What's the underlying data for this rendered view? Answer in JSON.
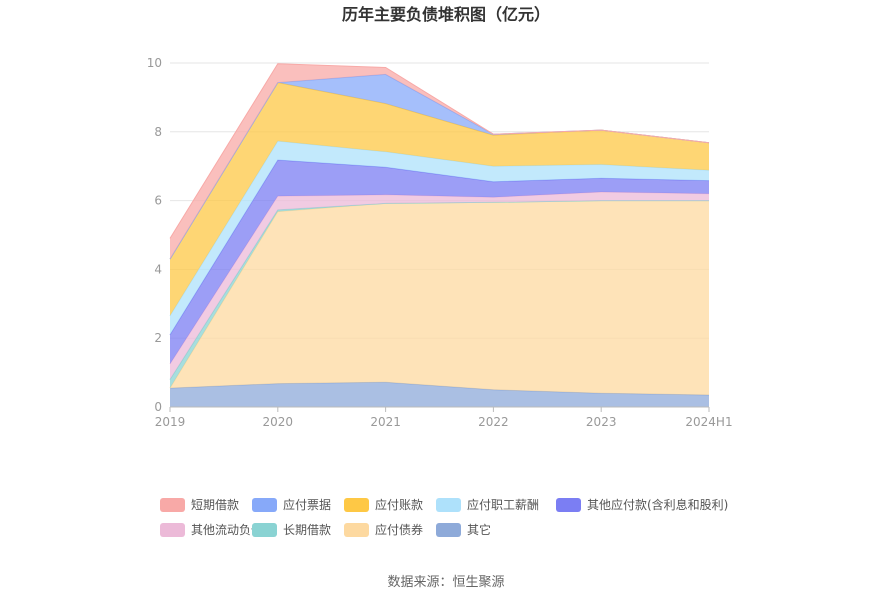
{
  "chart_data": {
    "type": "area",
    "stacked": true,
    "title": "历年主要负债堆积图（亿元）",
    "categories": [
      "2019",
      "2020",
      "2021",
      "2022",
      "2023",
      "2024H1"
    ],
    "ylim": [
      0,
      10
    ],
    "yticks": [
      "0",
      "2",
      "4",
      "6",
      "8",
      "10"
    ],
    "grid": true,
    "legend_position": "bottom",
    "series": [
      {
        "name": "其它",
        "color": "#8eaad9",
        "values": [
          0.55,
          0.68,
          0.72,
          0.5,
          0.4,
          0.35
        ]
      },
      {
        "name": "应付债券",
        "color": "#fdd9a0",
        "values": [
          0.0,
          5.0,
          5.2,
          5.45,
          5.6,
          5.65
        ]
      },
      {
        "name": "长期借款",
        "color": "#8ad3d3",
        "values": [
          0.25,
          0.05,
          0.0,
          0.0,
          0.0,
          0.0
        ]
      },
      {
        "name": "其他流动负债",
        "color": "#ecbad8",
        "values": [
          0.45,
          0.4,
          0.25,
          0.15,
          0.25,
          0.2
        ]
      },
      {
        "name": "其他应付款(含利息和股利)",
        "color": "#7b7ef3",
        "values": [
          0.85,
          1.05,
          0.8,
          0.45,
          0.4,
          0.38
        ]
      },
      {
        "name": "应付职工薪酬",
        "color": "#aee1fb",
        "values": [
          0.55,
          0.55,
          0.45,
          0.45,
          0.4,
          0.3
        ]
      },
      {
        "name": "应付账款",
        "color": "#fec845",
        "values": [
          1.65,
          1.7,
          1.4,
          0.9,
          1.0,
          0.8
        ]
      },
      {
        "name": "应付票据",
        "color": "#87a9f9",
        "values": [
          0.0,
          0.0,
          0.85,
          0.03,
          0.0,
          0.0
        ]
      },
      {
        "name": "短期借款",
        "color": "#f8a9a7",
        "values": [
          0.6,
          0.55,
          0.2,
          0.0,
          0.0,
          0.0
        ]
      }
    ],
    "legend_order": [
      "短期借款",
      "应付票据",
      "应付账款",
      "应付职工薪酬",
      "其他应付款(含利息和股利)",
      "其他流动负债",
      "长期借款",
      "应付债券",
      "其它"
    ]
  },
  "source": "数据来源：恒生聚源"
}
